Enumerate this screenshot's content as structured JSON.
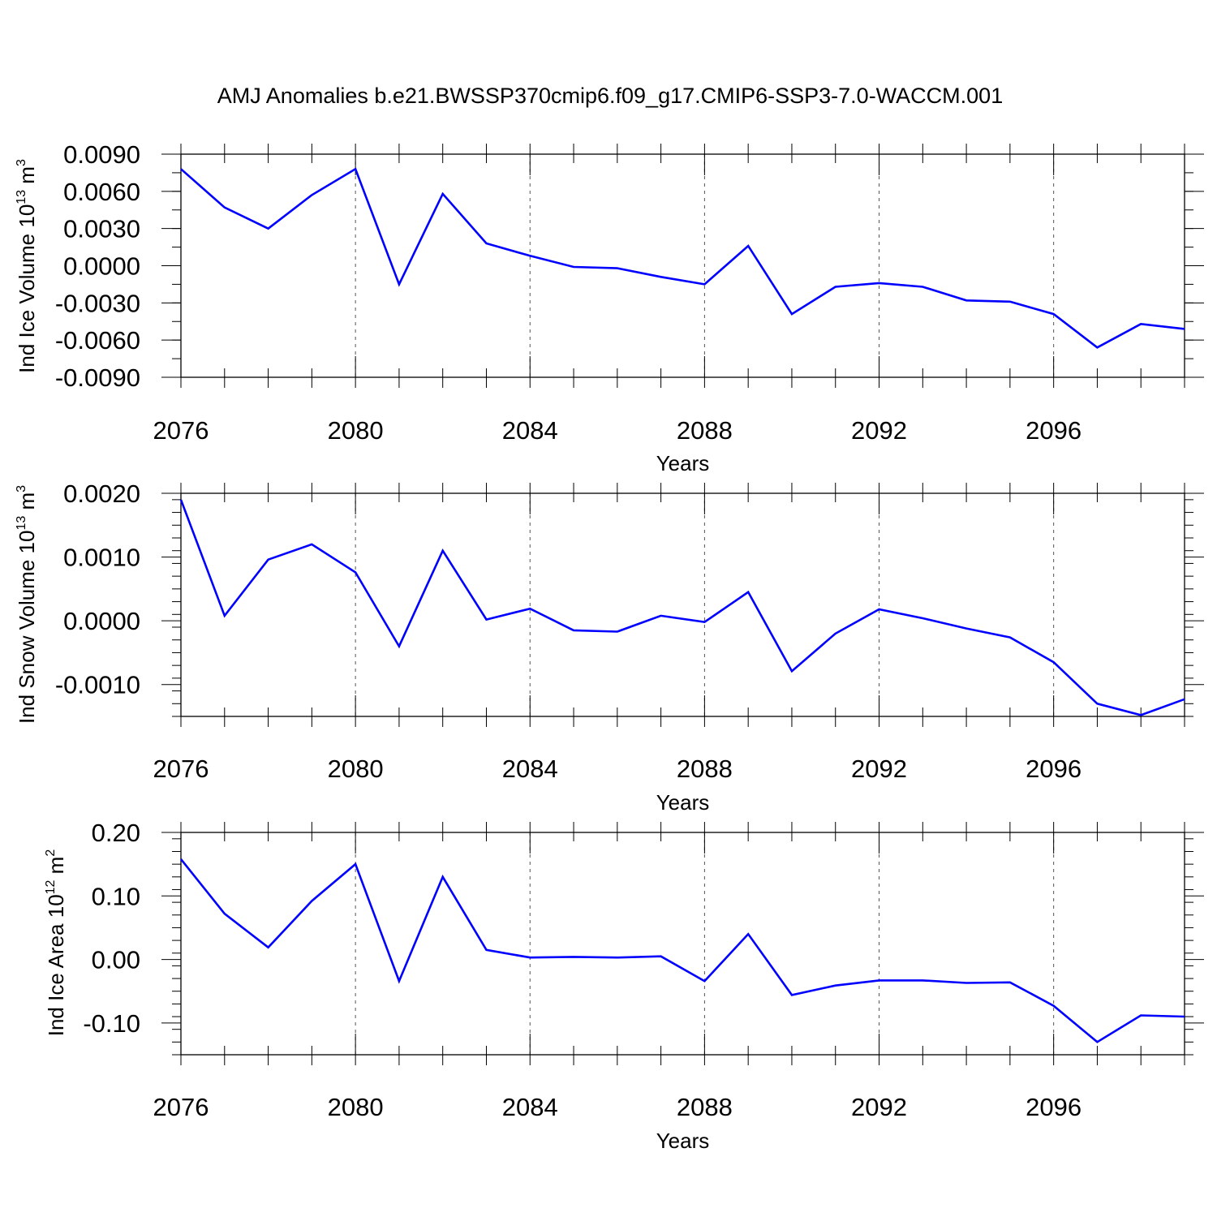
{
  "title": "AMJ Anomalies b.e21.BWSSP370cmip6.f09_g17.CMIP6-SSP3-7.0-WACCM.001",
  "chart_data": [
    {
      "type": "line",
      "ylabel": {
        "base": "Ind Ice Volume 10",
        "exp": "13",
        "unit": " m",
        "unit_exp": "3"
      },
      "xlabel": "Years",
      "xlim": [
        2076,
        2099
      ],
      "ylim": [
        -0.009,
        0.009
      ],
      "yticks": [
        "0.0090",
        "0.0060",
        "0.0030",
        "0.0000",
        "-0.0030",
        "-0.0060",
        "-0.0090"
      ],
      "ytick_values": [
        0.009,
        0.006,
        0.003,
        0.0,
        -0.003,
        -0.006,
        -0.009
      ],
      "xticks": [
        "2076",
        "2080",
        "2084",
        "2088",
        "2092",
        "2096"
      ],
      "xtick_values": [
        2076,
        2080,
        2084,
        2088,
        2092,
        2096
      ],
      "line_color": "#0000ff",
      "grid": "vertical dashed at major x ticks",
      "x": [
        2076,
        2077,
        2078,
        2079,
        2080,
        2081,
        2082,
        2083,
        2084,
        2085,
        2086,
        2087,
        2088,
        2089,
        2090,
        2091,
        2092,
        2093,
        2094,
        2095,
        2096,
        2097,
        2098,
        2099
      ],
      "values": [
        0.0078,
        0.0047,
        0.003,
        0.0057,
        0.0078,
        -0.0015,
        0.0058,
        0.0018,
        0.0008,
        -0.0001,
        -0.0002,
        -0.0009,
        -0.0015,
        0.0016,
        -0.0039,
        -0.0017,
        -0.0014,
        -0.0017,
        -0.0028,
        -0.0029,
        -0.0039,
        -0.0066,
        -0.0047,
        -0.0051
      ]
    },
    {
      "type": "line",
      "ylabel": {
        "base": "Ind Snow Volume 10",
        "exp": "13",
        "unit": " m",
        "unit_exp": "3"
      },
      "xlabel": "Years",
      "xlim": [
        2076,
        2099
      ],
      "ylim": [
        -0.0015,
        0.002
      ],
      "yticks": [
        "0.0020",
        "0.0010",
        "0.0000",
        "-0.0010"
      ],
      "ytick_values": [
        0.002,
        0.001,
        0.0,
        -0.001
      ],
      "xticks": [
        "2076",
        "2080",
        "2084",
        "2088",
        "2092",
        "2096"
      ],
      "xtick_values": [
        2076,
        2080,
        2084,
        2088,
        2092,
        2096
      ],
      "line_color": "#0000ff",
      "grid": "vertical dashed at major x ticks",
      "x": [
        2076,
        2077,
        2078,
        2079,
        2080,
        2081,
        2082,
        2083,
        2084,
        2085,
        2086,
        2087,
        2088,
        2089,
        2090,
        2091,
        2092,
        2093,
        2094,
        2095,
        2096,
        2097,
        2098,
        2099
      ],
      "values": [
        0.0019,
        8e-05,
        0.00096,
        0.0012,
        0.00076,
        -0.0004,
        0.0011,
        2e-05,
        0.00019,
        -0.00015,
        -0.00017,
        8e-05,
        -2e-05,
        0.00045,
        -0.00079,
        -0.0002,
        0.00018,
        4e-05,
        -0.00012,
        -0.00026,
        -0.00065,
        -0.0013,
        -0.00148,
        -0.00123
      ]
    },
    {
      "type": "line",
      "ylabel": {
        "base": "Ind Ice Area 10",
        "exp": "12",
        "unit": " m",
        "unit_exp": "2"
      },
      "xlabel": "Years",
      "xlim": [
        2076,
        2099
      ],
      "ylim": [
        -0.15,
        0.2
      ],
      "yticks": [
        "0.20",
        "0.10",
        "0.00",
        "-0.10"
      ],
      "ytick_values": [
        0.2,
        0.1,
        0.0,
        -0.1
      ],
      "xticks": [
        "2076",
        "2080",
        "2084",
        "2088",
        "2092",
        "2096"
      ],
      "xtick_values": [
        2076,
        2080,
        2084,
        2088,
        2092,
        2096
      ],
      "line_color": "#0000ff",
      "grid": "vertical dashed at major x ticks",
      "x": [
        2076,
        2077,
        2078,
        2079,
        2080,
        2081,
        2082,
        2083,
        2084,
        2085,
        2086,
        2087,
        2088,
        2089,
        2090,
        2091,
        2092,
        2093,
        2094,
        2095,
        2096,
        2097,
        2098,
        2099
      ],
      "values": [
        0.158,
        0.072,
        0.019,
        0.092,
        0.15,
        -0.034,
        0.13,
        0.015,
        0.003,
        0.004,
        0.003,
        0.005,
        -0.034,
        0.04,
        -0.056,
        -0.041,
        -0.033,
        -0.033,
        -0.037,
        -0.036,
        -0.073,
        -0.13,
        -0.088,
        -0.09
      ]
    }
  ]
}
